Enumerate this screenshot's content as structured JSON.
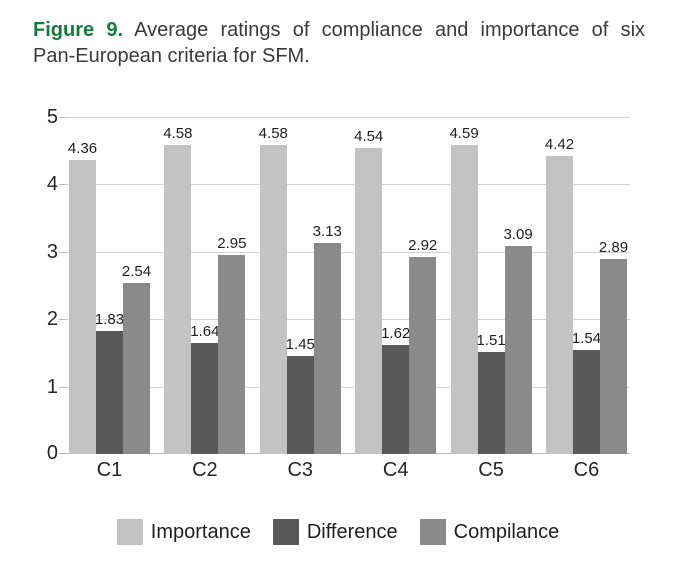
{
  "caption": {
    "figure_label": "Figure 9.",
    "line1_rest": "Average ratings of compliance and importance of six",
    "line2": "Pan-European criteria for SFM."
  },
  "palette": {
    "figure_label_green": "#147c3b",
    "caption_text": "#3a3a3a",
    "axis_text": "#262626",
    "value_label_text": "#1f1f1f",
    "gridline": "#d3d3d3",
    "axis_line": "#b9b9b9",
    "background": "#ffffff"
  },
  "chart_data": {
    "type": "bar",
    "title": "",
    "categories": [
      "C1",
      "C2",
      "C3",
      "C4",
      "C5",
      "C6"
    ],
    "series": [
      {
        "name": "Importance",
        "color": "#c3c3c3",
        "values": [
          4.36,
          4.58,
          4.58,
          4.54,
          4.59,
          4.42
        ]
      },
      {
        "name": "Difference",
        "color": "#595959",
        "values": [
          1.83,
          1.64,
          1.45,
          1.62,
          1.51,
          1.54
        ]
      },
      {
        "name": "Compilance",
        "color": "#8a8a8a",
        "values": [
          2.54,
          2.95,
          3.13,
          2.92,
          3.09,
          2.89
        ]
      }
    ],
    "xlabel": "",
    "ylabel": "",
    "ylim": [
      0,
      5
    ],
    "yticks": [
      0,
      1,
      2,
      3,
      4,
      5
    ],
    "grid": true,
    "data_labels": true,
    "data_label_format": "0.00",
    "legend_position": "bottom"
  }
}
